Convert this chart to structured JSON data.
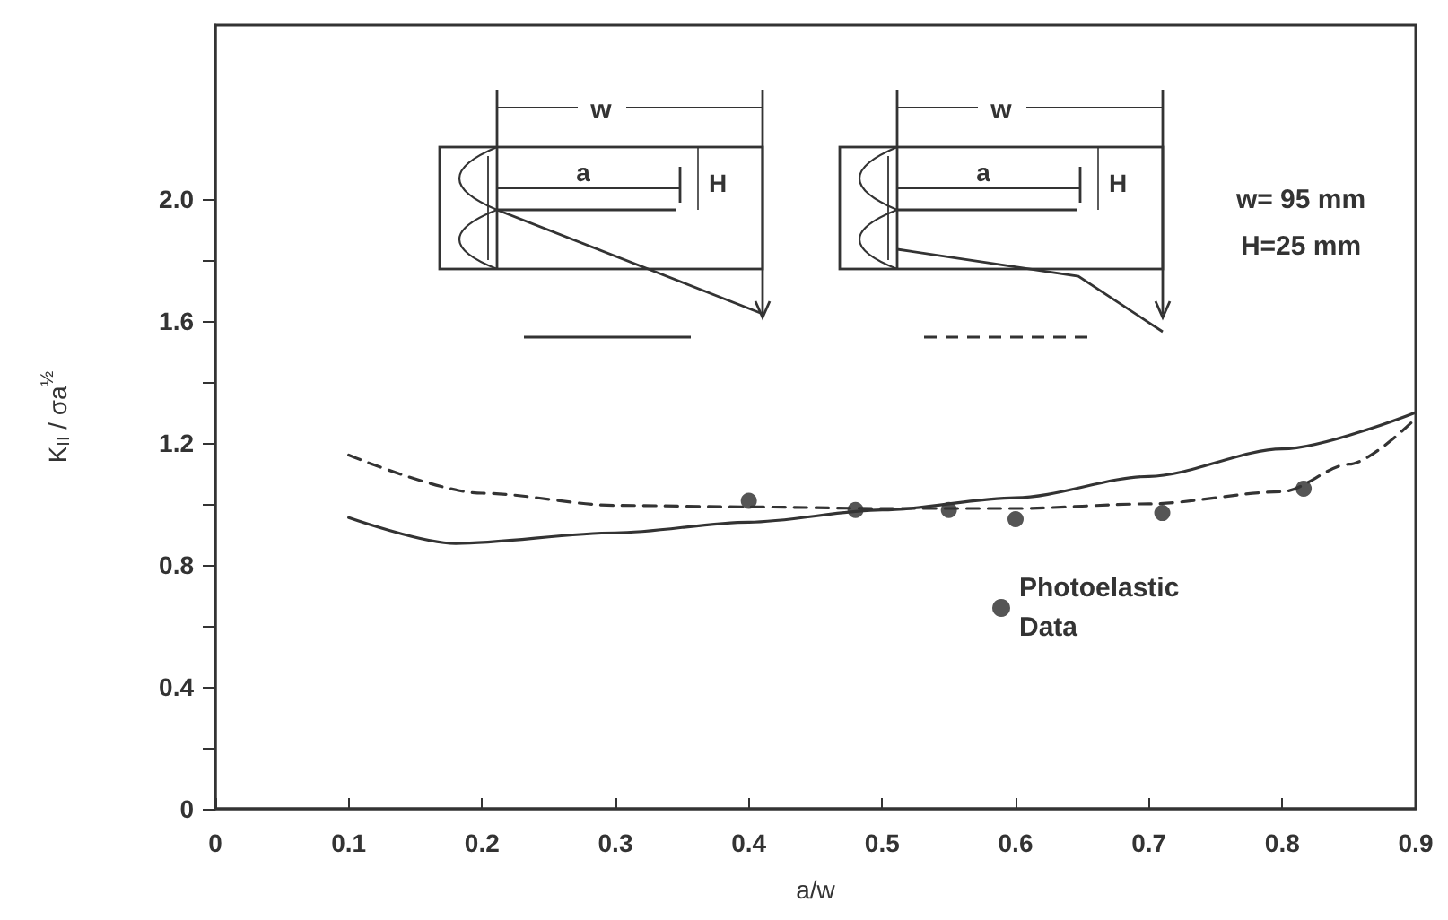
{
  "chart_data": {
    "type": "line",
    "xlabel": "a/w",
    "ylabel": "K$_{II}$ / σa$^{½}$",
    "xlim": [
      0,
      0.9
    ],
    "xticks": [
      0,
      0.1,
      0.2,
      0.3,
      0.4,
      0.5,
      0.6,
      0.7,
      0.8,
      0.9
    ],
    "ylim": [
      0,
      2.57
    ],
    "yticks": [
      0,
      {
        "value": 0.2,
        "label": null
      },
      0.4,
      {
        "value": 0.6,
        "label": null
      },
      0.8,
      {
        "value": 1.0,
        "label": null
      },
      1.2,
      {
        "value": 1.4,
        "label": null
      },
      1.6,
      {
        "value": 1.8,
        "label": null
      },
      {
        "value": 2.0,
        "label": "2.0"
      }
    ],
    "grid": false,
    "legend": "right",
    "annotations": [
      "w",
      "a",
      "H",
      "w",
      "a",
      "H",
      "w= 95 mm",
      "H=25 mm"
    ],
    "series": [
      {
        "color": "#333333",
        "line_style": "solid",
        "marker": "none",
        "x": [
          0.1,
          0.18,
          0.3,
          0.4,
          0.5,
          0.6,
          0.7,
          0.8,
          0.9
        ],
        "values": [
          0.955,
          0.87,
          0.905,
          0.94,
          0.98,
          1.02,
          1.09,
          1.18,
          1.3
        ]
      },
      {
        "color": "#333333",
        "line_style": "dashed",
        "marker": "none",
        "x": [
          0.1,
          0.2,
          0.3,
          0.4,
          0.5,
          0.6,
          0.7,
          0.8,
          0.85,
          0.9
        ],
        "values": [
          1.16,
          1.035,
          0.995,
          0.99,
          0.985,
          0.985,
          1.0,
          1.04,
          1.13,
          1.28
        ]
      },
      {
        "type": "scatter",
        "name": "Photoelastic Data",
        "color": "#555555",
        "marker": "circle",
        "x": [
          0.4,
          0.48,
          0.55,
          0.6,
          0.71,
          0.816
        ],
        "values": [
          1.01,
          0.98,
          0.98,
          0.95,
          0.97,
          1.05
        ]
      }
    ]
  }
}
